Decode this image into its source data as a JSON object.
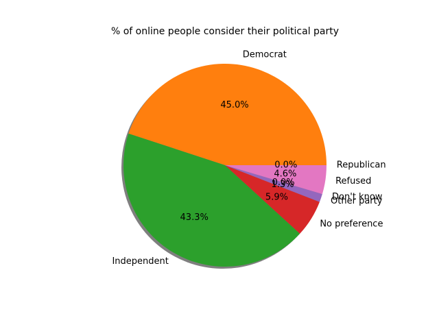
{
  "chart_data": {
    "type": "pie",
    "title": "% of online people consider their political party",
    "start_angle_deg": 0,
    "counterclockwise": true,
    "shadow": true,
    "slices": [
      {
        "label": "Republican",
        "value": 0.0,
        "pct_label": "0.0%",
        "color": "#1f77b4"
      },
      {
        "label": "Democrat",
        "value": 45.0,
        "pct_label": "45.0%",
        "color": "#ff7f0e"
      },
      {
        "label": "Independent",
        "value": 43.3,
        "pct_label": "43.3%",
        "color": "#2ca02c"
      },
      {
        "label": "No preference",
        "value": 5.9,
        "pct_label": "5.9%",
        "color": "#d62728"
      },
      {
        "label": "Other party",
        "value": 1.3,
        "pct_label": "1.3%",
        "color": "#9467bd"
      },
      {
        "label": "Don't know",
        "value": 0.0,
        "pct_label": "0.0%",
        "color": "#8c564b"
      },
      {
        "label": "Refused",
        "value": 4.6,
        "pct_label": "4.6%",
        "color": "#e377c2"
      }
    ]
  }
}
